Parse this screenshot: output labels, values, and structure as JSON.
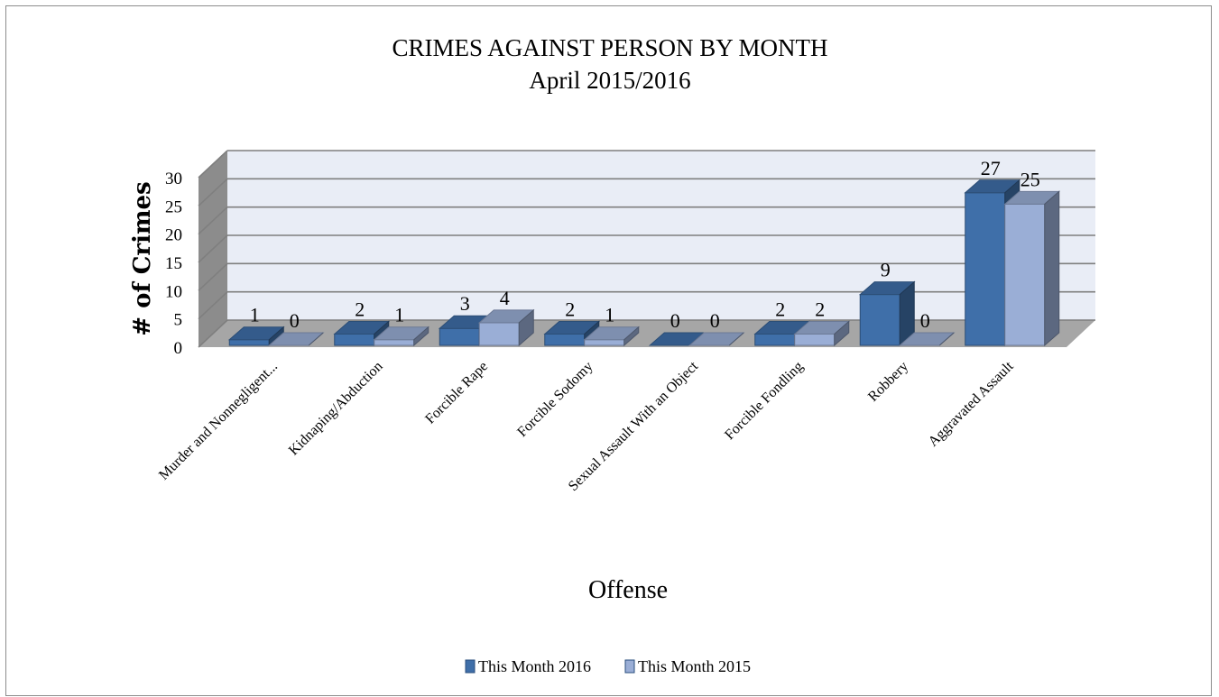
{
  "chart_data": {
    "type": "bar",
    "title": "CRIMES AGAINST PERSON BY MONTH",
    "subtitle": "April 2015/2016",
    "xlabel": "Offense",
    "ylabel": "# of Crimes",
    "ylim": [
      0,
      30
    ],
    "yticks": [
      "0",
      "5",
      "10",
      "15",
      "20",
      "25",
      "30"
    ],
    "categories": [
      "Murder and Nonnegligent...",
      "Kidnaping/Abduction",
      "Forcible Rape",
      "Forcible Sodomy",
      "Sexual Assault With an Object",
      "Forcible Fondling",
      "Robbery",
      "Aggravated Assault"
    ],
    "series": [
      {
        "name": "This Month 2016",
        "values": [
          1,
          2,
          3,
          2,
          0,
          2,
          9,
          27
        ],
        "color": "#3f6fa9"
      },
      {
        "name": "This Month 2015",
        "values": [
          0,
          1,
          4,
          1,
          0,
          2,
          0,
          25
        ],
        "color": "#9aaed6"
      }
    ],
    "value_labels": [
      [
        "1",
        "2",
        "3",
        "2",
        "0",
        "2",
        "9",
        "27"
      ],
      [
        "0",
        "1",
        "4",
        "1",
        "0",
        "2",
        "0",
        "25"
      ]
    ],
    "legend_position": "bottom",
    "grid": true,
    "style": "3d-clustered-column"
  }
}
